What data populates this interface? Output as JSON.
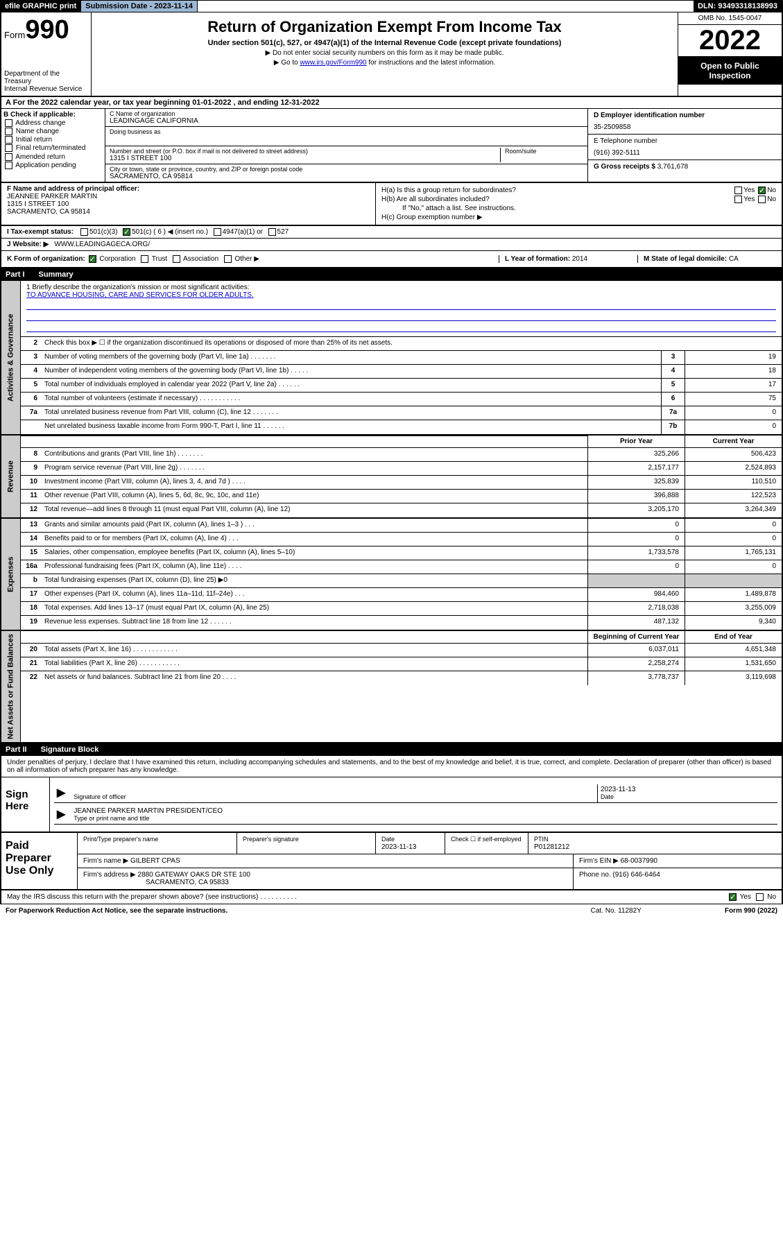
{
  "topbar": {
    "efile": "efile GRAPHIC print",
    "submission": "Submission Date - 2023-11-14",
    "dln": "DLN: 93493318138993"
  },
  "header": {
    "form_word": "Form",
    "form_no": "990",
    "title": "Return of Organization Exempt From Income Tax",
    "subtitle": "Under section 501(c), 527, or 4947(a)(1) of the Internal Revenue Code (except private foundations)",
    "instr1": "▶ Do not enter social security numbers on this form as it may be made public.",
    "instr2_pre": "▶ Go to ",
    "instr2_link": "www.irs.gov/Form990",
    "instr2_post": " for instructions and the latest information.",
    "dept": "Department of the Treasury\nInternal Revenue Service",
    "omb": "OMB No. 1545-0047",
    "year": "2022",
    "open": "Open to Public Inspection"
  },
  "rowA": "A For the 2022 calendar year, or tax year beginning 01-01-2022   , and ending 12-31-2022",
  "colB": {
    "label": "B Check if applicable:",
    "opts": [
      "Address change",
      "Name change",
      "Initial return",
      "Final return/terminated",
      "Amended return",
      "Application pending"
    ]
  },
  "colC": {
    "name_lbl": "C Name of organization",
    "name": "LEADINGAGE CALIFORNIA",
    "dba_lbl": "Doing business as",
    "dba": "",
    "street_lbl": "Number and street (or P.O. box if mail is not delivered to street address)",
    "room_lbl": "Room/suite",
    "street": "1315 I STREET 100",
    "city_lbl": "City or town, state or province, country, and ZIP or foreign postal code",
    "city": "SACRAMENTO, CA  95814"
  },
  "colD": {
    "ein_lbl": "D Employer identification number",
    "ein": "35-2509858",
    "tel_lbl": "E Telephone number",
    "tel": "(916) 392-5111",
    "gross_lbl": "G Gross receipts $",
    "gross": "3,761,678"
  },
  "fa": {
    "f_lbl": "F Name and address of principal officer:",
    "f_name": "JEANNEE PARKER MARTIN",
    "f_addr1": "1315 I STREET 100",
    "f_addr2": "SACRAMENTO, CA  95814",
    "ha_lbl": "H(a)  Is this a group return for subordinates?",
    "hb_lbl": "H(b)  Are all subordinates included?",
    "hb_note": "If \"No,\" attach a list. See instructions.",
    "hc_lbl": "H(c)  Group exemption number ▶"
  },
  "rowI": {
    "lbl": "I   Tax-exempt status:",
    "o1": "501(c)(3)",
    "o2": "501(c) ( 6 ) ◀ (insert no.)",
    "o3": "4947(a)(1) or",
    "o4": "527"
  },
  "rowJ": {
    "lbl": "J   Website: ▶",
    "val": "WWW.LEADINGAGECA.ORG/"
  },
  "rowK": {
    "lbl": "K Form of organization:",
    "o1": "Corporation",
    "o2": "Trust",
    "o3": "Association",
    "o4": "Other ▶",
    "l_lbl": "L Year of formation: ",
    "l_val": "2014",
    "m_lbl": "M State of legal domicile: ",
    "m_val": "CA"
  },
  "part1": {
    "num": "Part I",
    "title": "Summary"
  },
  "mission": {
    "q1": "1   Briefly describe the organization's mission or most significant activities:",
    "text": "TO ADVANCE HOUSING, CARE AND SERVICES FOR OLDER ADULTS."
  },
  "summary": {
    "side_activities": "Activities & Governance",
    "side_revenue": "Revenue",
    "side_expenses": "Expenses",
    "side_net": "Net Assets or Fund Balances",
    "line2": "Check this box ▶ ☐  if the organization discontinued its operations or disposed of more than 25% of its net assets.",
    "rows_ag": [
      {
        "n": "3",
        "d": "Number of voting members of the governing body (Part VI, line 1a)  .   .   .   .   .   .   .",
        "b": "3",
        "v": "19"
      },
      {
        "n": "4",
        "d": "Number of independent voting members of the governing body (Part VI, line 1b)  .   .   .   .   .",
        "b": "4",
        "v": "18"
      },
      {
        "n": "5",
        "d": "Total number of individuals employed in calendar year 2022 (Part V, line 2a)  .   .   .   .   .   .",
        "b": "5",
        "v": "17"
      },
      {
        "n": "6",
        "d": "Total number of volunteers (estimate if necessary)  .   .   .   .   .   .   .   .   .   .   .",
        "b": "6",
        "v": "75"
      },
      {
        "n": "7a",
        "d": "Total unrelated business revenue from Part VIII, column (C), line 12  .   .   .   .   .   .   .",
        "b": "7a",
        "v": "0"
      },
      {
        "n": "",
        "d": "Net unrelated business taxable income from Form 990-T, Part I, line 11  .   .   .   .   .   .",
        "b": "7b",
        "v": "0"
      }
    ],
    "hdr_prior": "Prior Year",
    "hdr_current": "Current Year",
    "rows_rev": [
      {
        "n": "8",
        "d": "Contributions and grants (Part VIII, line 1h)  .   .   .   .   .   .   .",
        "p": "325,266",
        "c": "506,423"
      },
      {
        "n": "9",
        "d": "Program service revenue (Part VIII, line 2g)  .   .   .   .   .   .   .",
        "p": "2,157,177",
        "c": "2,524,893"
      },
      {
        "n": "10",
        "d": "Investment income (Part VIII, column (A), lines 3, 4, and 7d )  .   .   .   .",
        "p": "325,839",
        "c": "110,510"
      },
      {
        "n": "11",
        "d": "Other revenue (Part VIII, column (A), lines 5, 6d, 8c, 9c, 10c, and 11e)",
        "p": "396,888",
        "c": "122,523"
      },
      {
        "n": "12",
        "d": "Total revenue—add lines 8 through 11 (must equal Part VIII, column (A), line 12)",
        "p": "3,205,170",
        "c": "3,264,349"
      }
    ],
    "rows_exp": [
      {
        "n": "13",
        "d": "Grants and similar amounts paid (Part IX, column (A), lines 1–3 )  .   .   .",
        "p": "0",
        "c": "0"
      },
      {
        "n": "14",
        "d": "Benefits paid to or for members (Part IX, column (A), line 4)  .   .   .",
        "p": "0",
        "c": "0"
      },
      {
        "n": "15",
        "d": "Salaries, other compensation, employee benefits (Part IX, column (A), lines 5–10)",
        "p": "1,733,578",
        "c": "1,765,131"
      },
      {
        "n": "16a",
        "d": "Professional fundraising fees (Part IX, column (A), line 11e)  .   .   .   .",
        "p": "0",
        "c": "0"
      },
      {
        "n": "b",
        "d": "Total fundraising expenses (Part IX, column (D), line 25) ▶0",
        "p": "",
        "c": "",
        "grey": true
      },
      {
        "n": "17",
        "d": "Other expenses (Part IX, column (A), lines 11a–11d, 11f–24e)  .   .   .",
        "p": "984,460",
        "c": "1,489,878"
      },
      {
        "n": "18",
        "d": "Total expenses. Add lines 13–17 (must equal Part IX, column (A), line 25)",
        "p": "2,718,038",
        "c": "3,255,009"
      },
      {
        "n": "19",
        "d": "Revenue less expenses. Subtract line 18 from line 12  .   .   .   .   .   .",
        "p": "487,132",
        "c": "9,340"
      }
    ],
    "hdr_beg": "Beginning of Current Year",
    "hdr_end": "End of Year",
    "rows_net": [
      {
        "n": "20",
        "d": "Total assets (Part X, line 16)  .   .   .   .   .   .   .   .   .   .   .   .",
        "p": "6,037,011",
        "c": "4,651,348"
      },
      {
        "n": "21",
        "d": "Total liabilities (Part X, line 26)  .   .   .   .   .   .   .   .   .   .   .",
        "p": "2,258,274",
        "c": "1,531,650"
      },
      {
        "n": "22",
        "d": "Net assets or fund balances. Subtract line 21 from line 20  .   .   .   .",
        "p": "3,778,737",
        "c": "3,119,698"
      }
    ]
  },
  "part2": {
    "num": "Part II",
    "title": "Signature Block"
  },
  "penalty": "Under penalties of perjury, I declare that I have examined this return, including accompanying schedules and statements, and to the best of my knowledge and belief, it is true, correct, and complete. Declaration of preparer (other than officer) is based on all information of which preparer has any knowledge.",
  "sign": {
    "label": "Sign Here",
    "sig_lbl": "Signature of officer",
    "date": "2023-11-13",
    "date_lbl": "Date",
    "name": "JEANNEE PARKER MARTIN  PRESIDENT/CEO",
    "name_lbl": "Type or print name and title"
  },
  "preparer": {
    "label": "Paid Preparer Use Only",
    "h1": "Print/Type preparer's name",
    "h2": "Preparer's signature",
    "h3": "Date",
    "date": "2023-11-13",
    "check_lbl": "Check ☐ if self-employed",
    "ptin_lbl": "PTIN",
    "ptin": "P01281212",
    "firm_lbl": "Firm's name    ▶",
    "firm": "GILBERT CPAS",
    "ein_lbl": "Firm's EIN ▶",
    "ein": "68-0037990",
    "addr_lbl": "Firm's address ▶",
    "addr1": "2880 GATEWAY OAKS DR STE 100",
    "addr2": "SACRAMENTO, CA 95833",
    "phone_lbl": "Phone no.",
    "phone": "(916) 646-6464"
  },
  "discuss": "May the IRS discuss this return with the preparer shown above? (see instructions)  .   .   .   .   .   .   .   .   .   .",
  "footer": {
    "left": "For Paperwork Reduction Act Notice, see the separate instructions.",
    "mid": "Cat. No. 11282Y",
    "right": "Form 990 (2022)"
  }
}
